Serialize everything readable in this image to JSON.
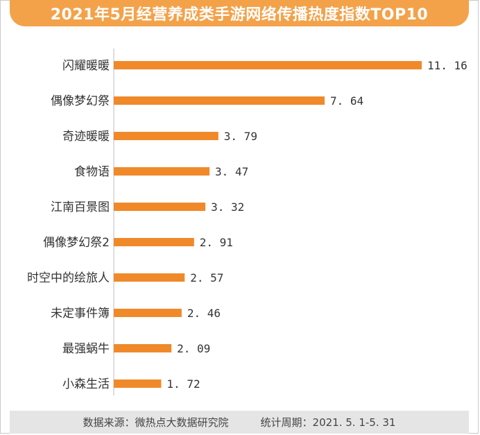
{
  "title": "2021年5月经营养成类手游网络传播热度指数TOP10",
  "chart_data": {
    "type": "bar",
    "orientation": "horizontal",
    "title": "2021年5月经营养成类手游网络传播热度指数TOP10",
    "categories": [
      "闪耀暖暖",
      "偶像梦幻祭",
      "奇迹暖暖",
      "食物语",
      "江南百景图",
      "偶像梦幻祭2",
      "时空中的绘旅人",
      "未定事件簿",
      "最强蜗牛",
      "小森生活"
    ],
    "values": [
      11.16,
      7.64,
      3.79,
      3.47,
      3.32,
      2.91,
      2.57,
      2.46,
      2.09,
      1.72
    ],
    "value_labels": [
      "11. 16",
      "7. 64",
      "3. 79",
      "3. 47",
      "3. 32",
      "2. 91",
      "2. 57",
      "2. 46",
      "2. 09",
      "1. 72"
    ],
    "bar_color": "#f0892a",
    "grid": false,
    "legend": "none"
  },
  "footer": {
    "source": "数据来源：微热点大数据研究院",
    "period": "统计周期：2021. 5. 1-5. 31"
  },
  "colors": {
    "banner": "#f3a24a",
    "bar": "#f0892a",
    "footer_bg": "#e5e5e5"
  }
}
